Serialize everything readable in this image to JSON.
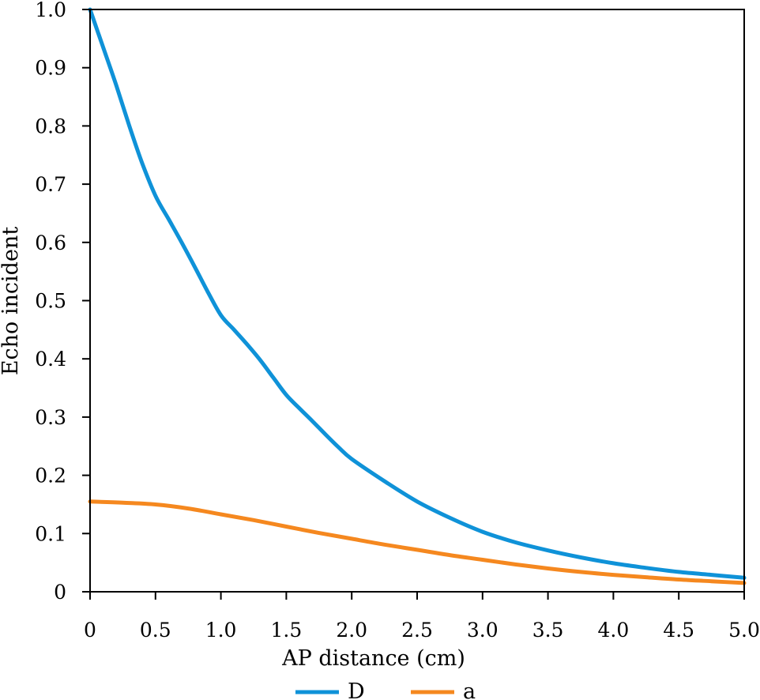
{
  "chart_data": {
    "type": "line",
    "title": "",
    "xlabel": "AP distance (cm)",
    "ylabel": "Echo incident",
    "xlim": [
      0,
      5.0
    ],
    "ylim": [
      0,
      1.0
    ],
    "grid": false,
    "legend_position": "bottom-center",
    "x_ticks": [
      {
        "value": 0,
        "label": "0"
      },
      {
        "value": 0.5,
        "label": "0.5"
      },
      {
        "value": 1.0,
        "label": "1.0"
      },
      {
        "value": 1.5,
        "label": "1.5"
      },
      {
        "value": 2.0,
        "label": "2.0"
      },
      {
        "value": 2.5,
        "label": "2.5"
      },
      {
        "value": 3.0,
        "label": "3.0"
      },
      {
        "value": 3.5,
        "label": "3.5"
      },
      {
        "value": 4.0,
        "label": "4.0"
      },
      {
        "value": 4.5,
        "label": "4.5"
      },
      {
        "value": 5.0,
        "label": "5.0"
      }
    ],
    "y_ticks": [
      {
        "value": 0,
        "label": "0"
      },
      {
        "value": 0.1,
        "label": "0.1"
      },
      {
        "value": 0.2,
        "label": "0.2"
      },
      {
        "value": 0.3,
        "label": "0.3"
      },
      {
        "value": 0.4,
        "label": "0.4"
      },
      {
        "value": 0.5,
        "label": "0.5"
      },
      {
        "value": 0.6,
        "label": "0.6"
      },
      {
        "value": 0.7,
        "label": "0.7"
      },
      {
        "value": 0.8,
        "label": "0.8"
      },
      {
        "value": 0.9,
        "label": "0.9"
      },
      {
        "value": 1.0,
        "label": "1.0"
      }
    ],
    "series": [
      {
        "name": "D",
        "color": "#0f92d8",
        "x": [
          0,
          0.1,
          0.2,
          0.3,
          0.4,
          0.5,
          0.6,
          0.7,
          0.8,
          0.9,
          1.0,
          1.1,
          1.2,
          1.3,
          1.4,
          1.5,
          1.6,
          1.7,
          1.8,
          1.9,
          2.0,
          2.25,
          2.5,
          2.75,
          3.0,
          3.25,
          3.5,
          3.75,
          4.0,
          4.25,
          4.5,
          4.75,
          5.0
        ],
        "y": [
          1.0,
          0.935,
          0.87,
          0.8,
          0.735,
          0.68,
          0.64,
          0.6,
          0.558,
          0.515,
          0.475,
          0.45,
          0.425,
          0.398,
          0.368,
          0.338,
          0.315,
          0.293,
          0.27,
          0.248,
          0.228,
          0.19,
          0.155,
          0.127,
          0.103,
          0.085,
          0.071,
          0.059,
          0.049,
          0.041,
          0.034,
          0.029,
          0.024
        ]
      },
      {
        "name": "a",
        "color": "#f5881f",
        "x": [
          0,
          0.25,
          0.5,
          0.75,
          1.0,
          1.25,
          1.5,
          1.75,
          2.0,
          2.25,
          2.5,
          2.75,
          3.0,
          3.25,
          3.5,
          3.75,
          4.0,
          4.25,
          4.5,
          4.75,
          5.0
        ],
        "y": [
          0.155,
          0.153,
          0.15,
          0.143,
          0.133,
          0.123,
          0.112,
          0.101,
          0.091,
          0.081,
          0.072,
          0.063,
          0.055,
          0.047,
          0.04,
          0.034,
          0.029,
          0.025,
          0.021,
          0.018,
          0.015
        ]
      }
    ]
  }
}
